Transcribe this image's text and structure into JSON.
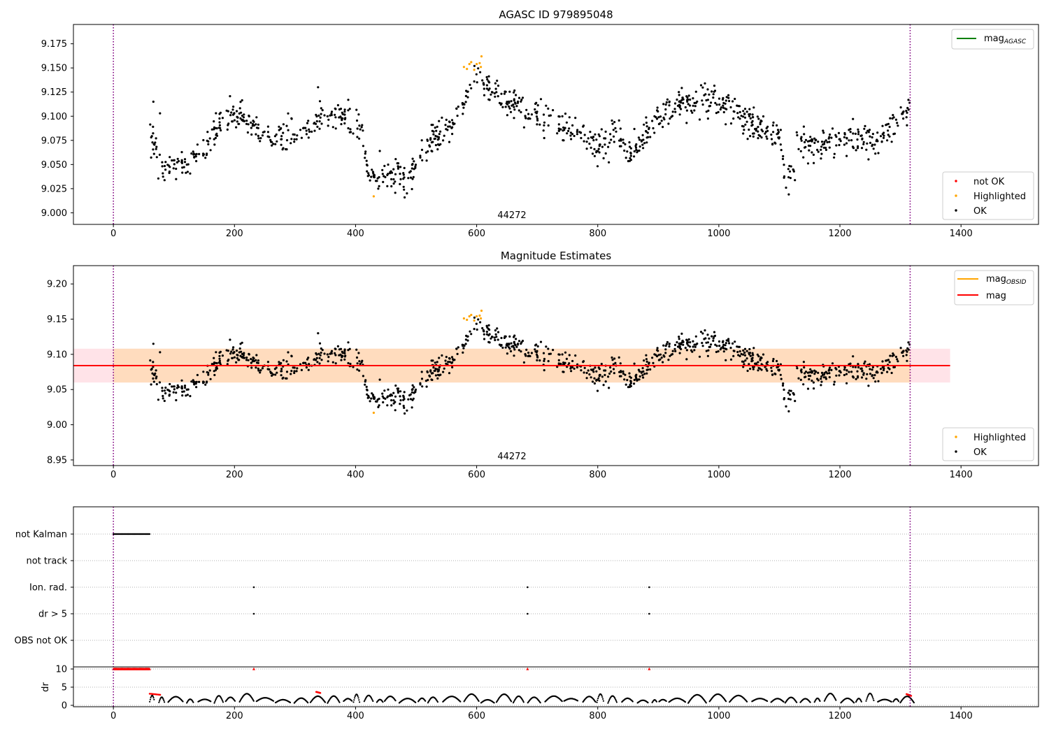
{
  "colors": {
    "ok": "#000000",
    "highlighted": "#ffa500",
    "not_ok": "#ff0000",
    "mag_agasc": "#008000",
    "mag_obsid": "#ffa500",
    "mag": "#ff0000",
    "obsid_boundary": "#800080",
    "band_outer": "#ffc0cb",
    "band_inner": "#ffdab9"
  },
  "chart_data": [
    {
      "type": "scatter",
      "title": "AGASC ID 979895048",
      "xlim": [
        -66,
        1528
      ],
      "ylim": [
        8.988,
        9.195
      ],
      "xticks": [
        0,
        200,
        400,
        600,
        800,
        1000,
        1200,
        1400
      ],
      "yticks": [
        "9.000",
        "9.025",
        "9.050",
        "9.075",
        "9.100",
        "9.125",
        "9.150",
        "9.175"
      ],
      "obsid_label": "44272",
      "obsid_boundaries": [
        0,
        1316
      ],
      "legend_lines": [
        {
          "label": "mag",
          "sub": "AGASC",
          "color": "#008000"
        }
      ],
      "legend_points": [
        {
          "label": "not OK",
          "color": "#ff0000"
        },
        {
          "label": "Highlighted",
          "color": "#ffa500"
        },
        {
          "label": "OK",
          "color": "#000000"
        }
      ],
      "series": [
        {
          "name": "OK",
          "trend_x": [
            60,
            70,
            80,
            110,
            130,
            150,
            180,
            210,
            260,
            300,
            340,
            380,
            410,
            420,
            440,
            470,
            480,
            520,
            560,
            600,
            640,
            700,
            760,
            800,
            840,
            850,
            900,
            940,
            1000,
            1060,
            1100,
            1110,
            1125,
            1130,
            1200,
            1260,
            1316
          ],
          "trend_y": [
            9.07,
            9.075,
            9.045,
            9.05,
            9.05,
            9.07,
            9.095,
            9.1,
            9.075,
            9.08,
            9.095,
            9.1,
            9.085,
            9.04,
            9.035,
            9.04,
            9.03,
            9.07,
            9.09,
            9.14,
            9.12,
            9.1,
            9.085,
            9.07,
            9.08,
            9.06,
            9.1,
            9.115,
            9.115,
            9.09,
            9.08,
            9.035,
            9.04,
            9.07,
            9.075,
            9.075,
            9.11
          ],
          "scatter": 0.014,
          "n": 1100,
          "extremes": [
            [
              66,
              9.115
            ],
            [
              77,
              9.103
            ],
            [
              338,
              9.13
            ],
            [
              388,
              9.117
            ],
            [
              440,
              9.064
            ],
            [
              480,
              9.024
            ],
            [
              1111,
              9.026
            ],
            [
              977,
              9.134
            ]
          ]
        },
        {
          "name": "Highlighted",
          "points": [
            [
              430,
              9.017
            ],
            [
              579,
              9.151
            ],
            [
              584,
              9.149
            ],
            [
              588,
              9.154
            ],
            [
              591,
              9.156
            ],
            [
              596,
              9.148
            ],
            [
              600,
              9.154
            ],
            [
              605,
              9.155
            ],
            [
              607,
              9.151
            ],
            [
              608,
              9.162
            ]
          ]
        }
      ]
    },
    {
      "type": "scatter",
      "title": "Magnitude Estimates",
      "xlim": [
        -66,
        1528
      ],
      "ylim": [
        8.942,
        9.226
      ],
      "xticks": [
        0,
        200,
        400,
        600,
        800,
        1000,
        1200,
        1400
      ],
      "yticks": [
        "8.95",
        "9.00",
        "9.05",
        "9.10",
        "9.15",
        "9.20"
      ],
      "obsid_label": "44272",
      "obsid_boundaries": [
        0,
        1316
      ],
      "mag": 9.084,
      "mag_obsid": 9.084,
      "band_outer": [
        9.06,
        9.108
      ],
      "band_outer_x": [
        -66,
        1382
      ],
      "band_inner": [
        9.06,
        9.108
      ],
      "band_inner_x": [
        0,
        1316
      ],
      "legend_lines": [
        {
          "label": "mag",
          "sub": "OBSID",
          "color": "#ffa500"
        },
        {
          "label": "mag",
          "sub": "",
          "color": "#ff0000"
        }
      ],
      "legend_points": [
        {
          "label": "Highlighted",
          "color": "#ffa500"
        },
        {
          "label": "OK",
          "color": "#000000"
        }
      ]
    },
    {
      "type": "scatter",
      "title": "",
      "flags": [
        "not Kalman",
        "not track",
        "Ion. rad.",
        "dr > 5",
        "OBS not OK"
      ],
      "flag_points": {
        "not Kalman": {
          "from": 0,
          "to": 60
        },
        "Ion. rad.": [
          232,
          684,
          885
        ],
        "dr > 5": [
          232,
          684,
          885
        ]
      },
      "dr": {
        "ylabel": "dr",
        "yticks": [
          0,
          5,
          10
        ],
        "ylim": [
          -1,
          11
        ],
        "clipped_value": 10,
        "clipped_ranges": [
          [
            0,
            60
          ]
        ],
        "clipped_points": [
          232,
          684,
          885
        ],
        "high_segments": [
          [
            [
              60,
              3.2
            ],
            [
              78,
              2.9
            ]
          ],
          [
            [
              335,
              3.7
            ],
            [
              342,
              3.4
            ]
          ],
          [
            [
              1310,
              3.1
            ],
            [
              1318,
              2.6
            ]
          ]
        ]
      },
      "xlim": [
        -66,
        1528
      ],
      "xticks": [
        0,
        200,
        400,
        600,
        800,
        1000,
        1200,
        1400
      ]
    }
  ]
}
